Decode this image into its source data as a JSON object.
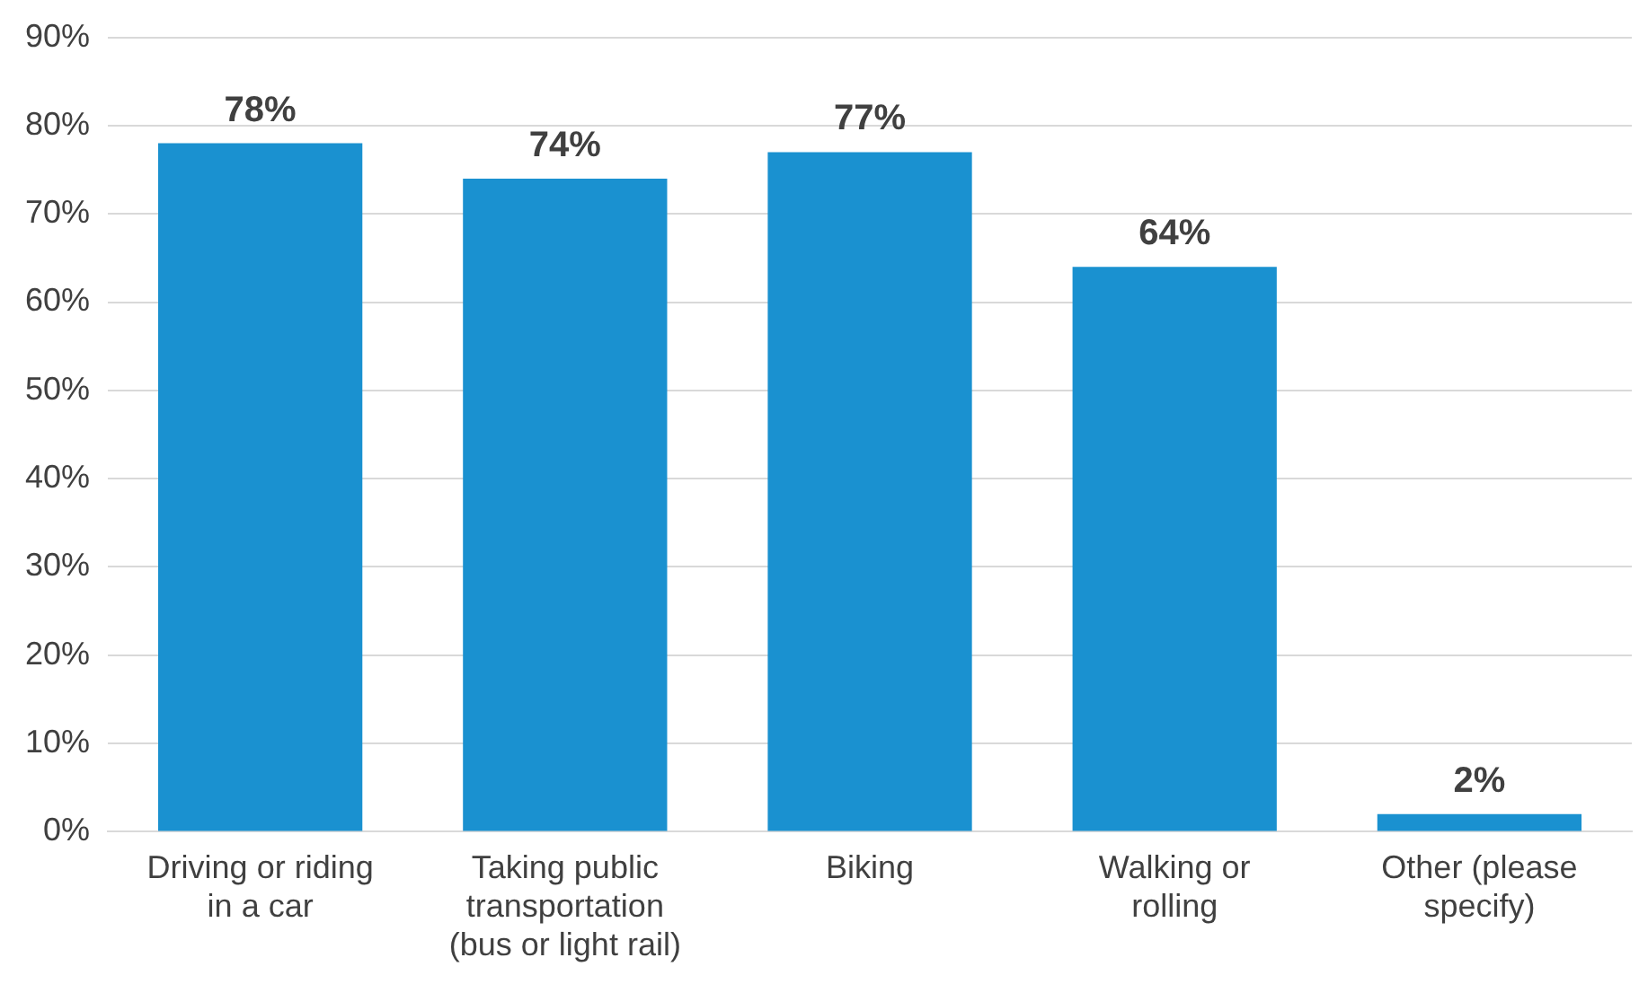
{
  "chart_data": {
    "type": "bar",
    "categories": [
      "Driving or riding\nin a car",
      "Taking public\ntransportation\n(bus or light rail)",
      "Biking",
      "Walking or\nrolling",
      "Other (please\nspecify)"
    ],
    "values": [
      78,
      74,
      77,
      64,
      2
    ],
    "value_labels": [
      "78%",
      "74%",
      "77%",
      "64%",
      "2%"
    ],
    "color": "#1a91d0",
    "ylim": [
      0,
      90
    ],
    "yticks": [
      {
        "value": 0,
        "label": "0%"
      },
      {
        "value": 10,
        "label": "10%"
      },
      {
        "value": 20,
        "label": "20%"
      },
      {
        "value": 30,
        "label": "30%"
      },
      {
        "value": 40,
        "label": "40%"
      },
      {
        "value": 50,
        "label": "50%"
      },
      {
        "value": 60,
        "label": "60%"
      },
      {
        "value": 70,
        "label": "70%"
      },
      {
        "value": 80,
        "label": "80%"
      },
      {
        "value": 90,
        "label": "90%"
      }
    ],
    "grid": "y",
    "legend": false
  }
}
